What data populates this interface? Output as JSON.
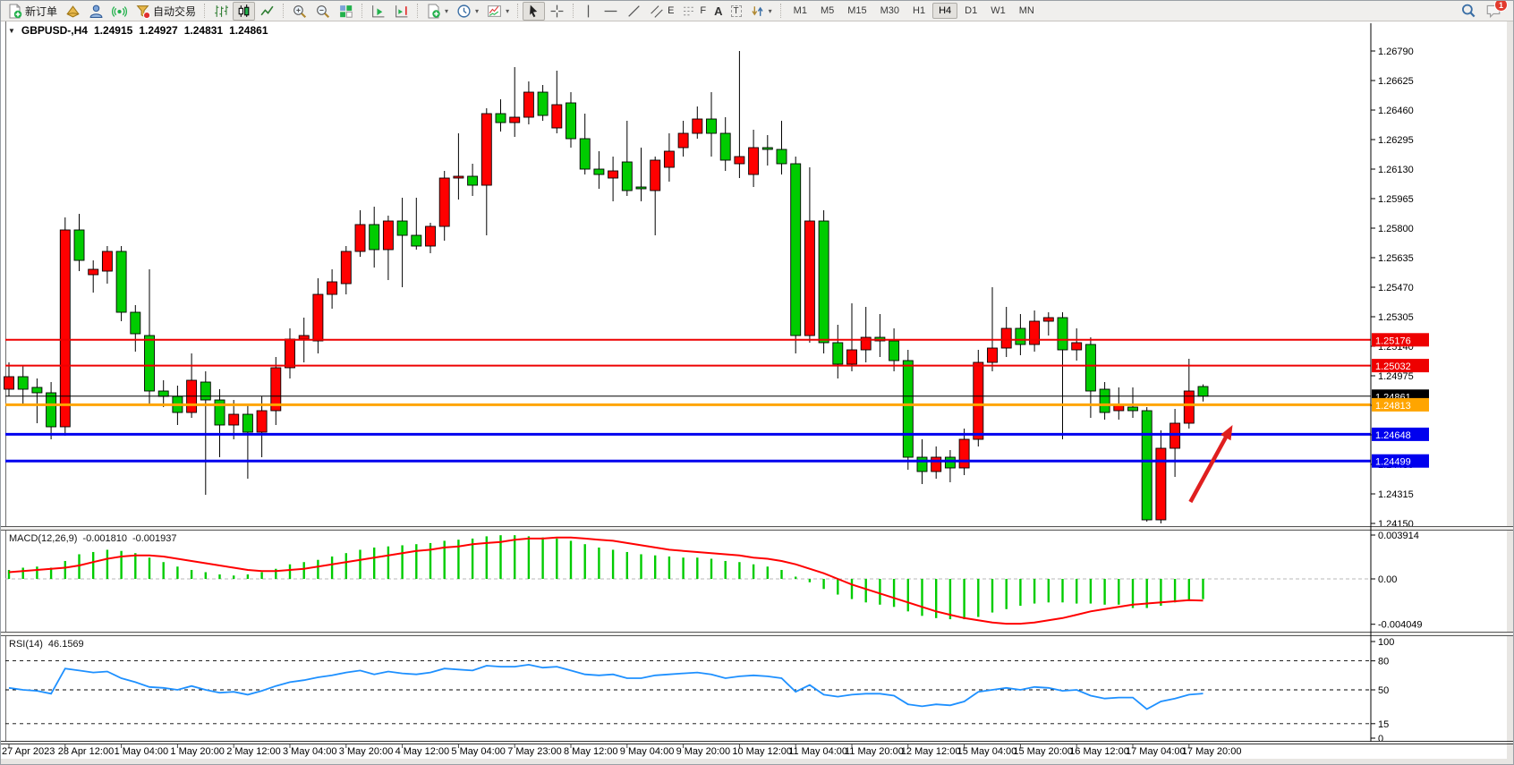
{
  "app": {
    "badge_count": "1"
  },
  "toolbar": {
    "new_order": "新订单",
    "auto_trading": "自动交易",
    "timeframes": [
      "M1",
      "M5",
      "M15",
      "M30",
      "H1",
      "H4",
      "D1",
      "W1",
      "MN"
    ],
    "active_timeframe": "H4",
    "glyphs": {
      "text_tool": "A",
      "label_tool": "T",
      "channel_tool": "E",
      "fibonacci_tool": "F"
    }
  },
  "chart_header": {
    "collapse_glyph": "▼",
    "symbol_period": "GBPUSD-,H4",
    "open": "1.24915",
    "high": "1.24927",
    "low": "1.24831",
    "close": "1.24861"
  },
  "indicators": {
    "macd": {
      "name": "MACD(12,26,9)",
      "main_value": "-0.001810",
      "signal_value": "-0.001937"
    },
    "rsi": {
      "name": "RSI(14)",
      "value": "46.1569"
    }
  },
  "chart_data": [
    {
      "type": "candlestick",
      "title": "GBPUSD-,H4",
      "up_color": "#ff0000",
      "down_color": "#00cc00",
      "outline_color": "#000000",
      "ylim": [
        1.2412,
        1.26865
      ],
      "y_ticks": [
        "1.26790",
        "1.26625",
        "1.26460",
        "1.26295",
        "1.26130",
        "1.25965",
        "1.25800",
        "1.25635",
        "1.25470",
        "1.25305",
        "1.25140",
        "1.24975",
        "1.24810",
        "1.24645",
        "1.24480",
        "1.24315",
        "1.24150"
      ],
      "x_labels": [
        "27 Apr 2023",
        "28 Apr 12:00",
        "1 May 04:00",
        "1 May 20:00",
        "2 May 12:00",
        "3 May 04:00",
        "3 May 20:00",
        "4 May 12:00",
        "5 May 04:00",
        "7 May 23:00",
        "8 May 12:00",
        "9 May 04:00",
        "9 May 20:00",
        "10 May 12:00",
        "11 May 04:00",
        "11 May 20:00",
        "12 May 12:00",
        "15 May 04:00",
        "15 May 20:00",
        "16 May 12:00",
        "17 May 04:00",
        "17 May 20:00"
      ],
      "bars_per_label": 4,
      "open": [
        1.249,
        1.2497,
        1.2491,
        1.2488,
        1.2469,
        1.2579,
        1.2554,
        1.2556,
        1.2567,
        1.2533,
        1.252,
        1.2489,
        1.2486,
        1.2477,
        1.2494,
        1.2484,
        1.247,
        1.2476,
        1.2466,
        1.2478,
        1.2502,
        1.2518,
        1.2517,
        1.2543,
        1.2549,
        1.2567,
        1.2582,
        1.2568,
        1.2584,
        1.2576,
        1.257,
        1.2581,
        1.2608,
        1.2609,
        1.2604,
        1.2644,
        1.2639,
        1.2642,
        1.2656,
        1.2636,
        1.265,
        1.263,
        1.2613,
        1.2608,
        1.2617,
        1.2603,
        1.2601,
        1.2614,
        1.2625,
        1.2633,
        1.2641,
        1.2633,
        1.2616,
        1.261,
        1.2625,
        1.2624,
        1.2616,
        1.252,
        1.2584,
        1.2516,
        1.2504,
        1.2512,
        1.2519,
        1.2517,
        1.2506,
        1.2452,
        1.2444,
        1.2452,
        1.2446,
        1.2462,
        1.2505,
        1.2513,
        1.2524,
        1.2515,
        1.2528,
        1.253,
        1.2512,
        1.2515,
        1.249,
        1.2478,
        1.248,
        1.2478,
        1.2417,
        1.2457,
        1.2471,
        1.24915
      ],
      "high": [
        1.2505,
        1.2503,
        1.2496,
        1.2494,
        1.2586,
        1.2588,
        1.2562,
        1.257,
        1.257,
        1.2537,
        1.2557,
        1.2495,
        1.2492,
        1.251,
        1.25,
        1.249,
        1.2484,
        1.2482,
        1.2486,
        1.2508,
        1.2524,
        1.253,
        1.2552,
        1.2557,
        1.257,
        1.259,
        1.2592,
        1.2587,
        1.2597,
        1.2597,
        1.2583,
        1.2612,
        1.2633,
        1.2616,
        1.2647,
        1.2652,
        1.267,
        1.2662,
        1.266,
        1.2668,
        1.2656,
        1.2644,
        1.2623,
        1.262,
        1.264,
        1.2625,
        1.262,
        1.2633,
        1.264,
        1.2648,
        1.2656,
        1.2642,
        1.2679,
        1.2635,
        1.2632,
        1.264,
        1.262,
        1.2614,
        1.259,
        1.2526,
        1.2538,
        1.2536,
        1.2532,
        1.2524,
        1.2512,
        1.2462,
        1.2458,
        1.2456,
        1.2468,
        1.2512,
        1.2547,
        1.2536,
        1.2532,
        1.2534,
        1.2533,
        1.2533,
        1.2524,
        1.2519,
        1.2494,
        1.2491,
        1.2491,
        1.248,
        1.2467,
        1.2479,
        1.2507,
        1.24927
      ],
      "low": [
        1.2486,
        1.2482,
        1.2471,
        1.2462,
        1.2464,
        1.2556,
        1.2544,
        1.2549,
        1.2528,
        1.2511,
        1.2482,
        1.248,
        1.247,
        1.2474,
        1.2431,
        1.2452,
        1.2462,
        1.244,
        1.2452,
        1.247,
        1.2496,
        1.2505,
        1.251,
        1.2535,
        1.2543,
        1.2564,
        1.2558,
        1.2551,
        1.2547,
        1.2568,
        1.2566,
        1.2573,
        1.2596,
        1.2598,
        1.2576,
        1.2634,
        1.2631,
        1.2638,
        1.264,
        1.2633,
        1.2625,
        1.261,
        1.2602,
        1.2595,
        1.2598,
        1.2595,
        1.2576,
        1.2606,
        1.262,
        1.263,
        1.262,
        1.2612,
        1.2608,
        1.2603,
        1.2615,
        1.261,
        1.251,
        1.2516,
        1.251,
        1.2496,
        1.25,
        1.2505,
        1.2508,
        1.25,
        1.2445,
        1.2437,
        1.244,
        1.2438,
        1.2442,
        1.2458,
        1.25,
        1.2508,
        1.2509,
        1.2511,
        1.252,
        1.2462,
        1.2506,
        1.2474,
        1.2473,
        1.2473,
        1.2474,
        1.2416,
        1.2415,
        1.2441,
        1.2468,
        1.24831
      ],
      "close": [
        1.2497,
        1.249,
        1.2488,
        1.2469,
        1.2579,
        1.2562,
        1.2557,
        1.2567,
        1.2533,
        1.2521,
        1.2489,
        1.2486,
        1.2477,
        1.2495,
        1.2484,
        1.247,
        1.2476,
        1.2466,
        1.2478,
        1.2502,
        1.2518,
        1.252,
        1.2543,
        1.255,
        1.2567,
        1.2582,
        1.2568,
        1.2584,
        1.2576,
        1.257,
        1.2581,
        1.2608,
        1.2609,
        1.2604,
        1.2644,
        1.2639,
        1.2642,
        1.2656,
        1.2643,
        1.2649,
        1.263,
        1.2613,
        1.261,
        1.2612,
        1.2601,
        1.2602,
        1.2618,
        1.2623,
        1.2633,
        1.2641,
        1.2633,
        1.2618,
        1.262,
        1.2625,
        1.2624,
        1.2616,
        1.252,
        1.2584,
        1.2516,
        1.2504,
        1.2512,
        1.2519,
        1.2517,
        1.2506,
        1.2452,
        1.2444,
        1.2452,
        1.2446,
        1.2462,
        1.2505,
        1.2513,
        1.2524,
        1.2515,
        1.2528,
        1.253,
        1.2512,
        1.2516,
        1.2489,
        1.2477,
        1.2481,
        1.2478,
        1.2417,
        1.2457,
        1.2471,
        1.2489,
        1.24861
      ],
      "price_lines": [
        {
          "value": 1.25176,
          "label": "1.25176",
          "color": "#ee0000",
          "width": 2
        },
        {
          "value": 1.25032,
          "label": "1.25032",
          "color": "#ee0000",
          "width": 2
        },
        {
          "value": 1.24861,
          "label": "1.24861",
          "color": "#000000",
          "width": 1
        },
        {
          "value": 1.24813,
          "label": "1.24813",
          "color": "#ffa500",
          "width": 3
        },
        {
          "value": 1.24648,
          "label": "1.24648",
          "color": "#0000ee",
          "width": 3
        },
        {
          "value": 1.24499,
          "label": "1.24499",
          "color": "#0000ee",
          "width": 3
        }
      ],
      "current_price": 1.24861,
      "annotations": [
        {
          "type": "arrow",
          "color": "#e01f1f",
          "from_bar": 84.1,
          "from_price": 1.2427,
          "to_bar": 87.1,
          "to_price": 1.247
        }
      ]
    },
    {
      "type": "bar",
      "name": "MACD(12,26,9)",
      "bar_color": "#00cc00",
      "signal_color": "#ff0000",
      "y_tick_labels": [
        "0.003914",
        "0.00",
        "-0.004049"
      ],
      "y_tick_values": [
        0.003914,
        0,
        -0.004049
      ],
      "histogram": [
        0.0008,
        0.001,
        0.0011,
        0.001,
        0.0016,
        0.0022,
        0.0024,
        0.0026,
        0.0025,
        0.0023,
        0.0019,
        0.0015,
        0.0011,
        0.0008,
        0.0006,
        0.0004,
        0.0003,
        0.0004,
        0.0006,
        0.0009,
        0.0013,
        0.0015,
        0.0017,
        0.002,
        0.0023,
        0.0026,
        0.0028,
        0.0029,
        0.003,
        0.0031,
        0.0032,
        0.0034,
        0.0035,
        0.0036,
        0.0038,
        0.0039,
        0.0039,
        0.0038,
        0.0037,
        0.0036,
        0.0034,
        0.0031,
        0.0028,
        0.0026,
        0.0024,
        0.0022,
        0.0021,
        0.002,
        0.0019,
        0.0019,
        0.0018,
        0.0016,
        0.0015,
        0.0013,
        0.0011,
        0.0008,
        0.0002,
        -0.0003,
        -0.0009,
        -0.0014,
        -0.0018,
        -0.0021,
        -0.0023,
        -0.0025,
        -0.0029,
        -0.0033,
        -0.0035,
        -0.0036,
        -0.0036,
        -0.0034,
        -0.003,
        -0.0027,
        -0.0024,
        -0.0022,
        -0.0021,
        -0.0021,
        -0.0022,
        -0.0022,
        -0.0023,
        -0.0023,
        -0.0026,
        -0.0026,
        -0.0024,
        -0.0021,
        -0.0019,
        -0.00181
      ],
      "signal": [
        0.0006,
        0.0007,
        0.0008,
        0.0009,
        0.001,
        0.0012,
        0.0015,
        0.0018,
        0.002,
        0.0021,
        0.0021,
        0.002,
        0.0018,
        0.0016,
        0.0014,
        0.0012,
        0.001,
        0.0008,
        0.0007,
        0.0007,
        0.0008,
        0.0009,
        0.0011,
        0.0013,
        0.0015,
        0.0017,
        0.0019,
        0.0021,
        0.0023,
        0.0025,
        0.0026,
        0.0028,
        0.0029,
        0.0031,
        0.0032,
        0.0033,
        0.0035,
        0.0036,
        0.0036,
        0.0037,
        0.0037,
        0.0036,
        0.0035,
        0.0034,
        0.0032,
        0.003,
        0.0028,
        0.0026,
        0.0025,
        0.0024,
        0.0023,
        0.0022,
        0.0021,
        0.0019,
        0.0018,
        0.0016,
        0.0013,
        0.0009,
        0.0005,
        0.0,
        -0.0005,
        -0.0009,
        -0.0013,
        -0.0017,
        -0.0021,
        -0.0025,
        -0.0029,
        -0.0032,
        -0.0035,
        -0.0037,
        -0.0039,
        -0.004,
        -0.004,
        -0.0039,
        -0.0037,
        -0.0035,
        -0.0032,
        -0.0029,
        -0.0027,
        -0.0025,
        -0.0023,
        -0.0022,
        -0.0021,
        -0.002,
        -0.0019,
        -0.001937
      ]
    },
    {
      "type": "line",
      "name": "RSI(14)",
      "line_color": "#1e90ff",
      "ylim": [
        0,
        100
      ],
      "levels": [
        80,
        50,
        15
      ],
      "y_ticks": [
        100,
        80,
        50,
        15,
        0
      ],
      "values": [
        52,
        50,
        49,
        46,
        72,
        70,
        68,
        69,
        62,
        58,
        53,
        52,
        50,
        54,
        50,
        47,
        48,
        45,
        49,
        54,
        58,
        60,
        63,
        65,
        68,
        70,
        66,
        69,
        67,
        66,
        68,
        72,
        71,
        70,
        75,
        74,
        74,
        76,
        73,
        74,
        70,
        66,
        65,
        66,
        62,
        62,
        65,
        66,
        67,
        68,
        66,
        62,
        64,
        65,
        64,
        62,
        48,
        55,
        45,
        43,
        45,
        46,
        46,
        44,
        35,
        33,
        35,
        34,
        38,
        48,
        50,
        52,
        50,
        53,
        52,
        49,
        50,
        44,
        41,
        42,
        42,
        30,
        38,
        41,
        45,
        46.16
      ]
    }
  ]
}
